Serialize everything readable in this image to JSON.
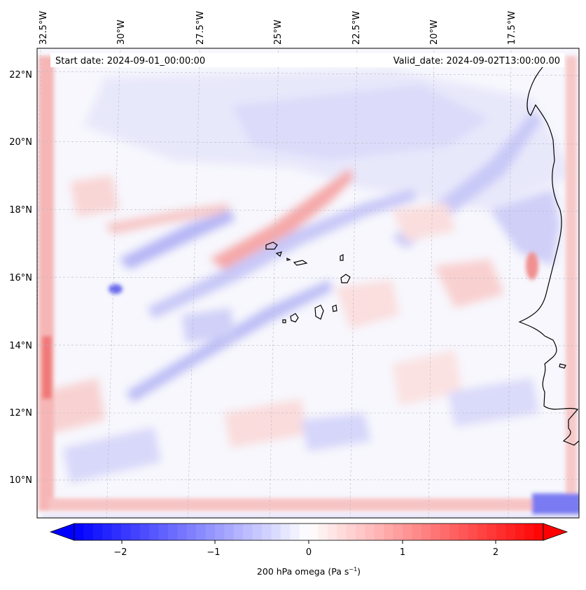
{
  "header": {
    "start_date": "Start date: 2024-09-01_00:00:00",
    "valid_date": "Valid_date: 2024-09-02T13:00:00.00"
  },
  "axes": {
    "lon_labels": [
      "32.5°W",
      "30°W",
      "27.5°W",
      "25°W",
      "22.5°W",
      "20°W",
      "17.5°W"
    ],
    "lat_labels": [
      "22°N",
      "20°N",
      "18°N",
      "16°N",
      "14°N",
      "12°N",
      "10°N"
    ]
  },
  "colorbar": {
    "label": "200 hPa omega (Pa s",
    "label_sup": "−1",
    "label_end": ")",
    "ticks": [
      "−2",
      "−1",
      "0",
      "1",
      "2"
    ],
    "range": [
      -2.5,
      2.5
    ],
    "colors": {
      "negative": "#0000ff",
      "zero": "#ffffff",
      "positive": "#ff0000"
    }
  },
  "colors": {
    "coastline": "#000000",
    "gridline": "#b8b8c8",
    "field_background": "#f6f6fc"
  }
}
